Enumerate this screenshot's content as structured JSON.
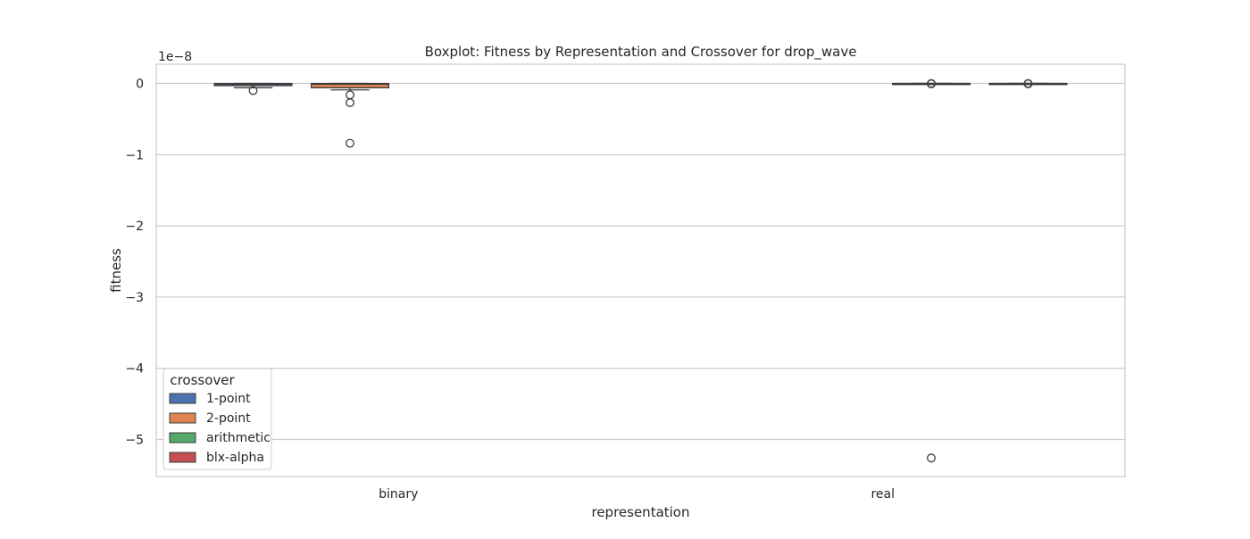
{
  "chart_data": {
    "type": "box",
    "title": "Boxplot: Fitness by Representation and Crossover for drop_wave",
    "xlabel": "representation",
    "ylabel": "fitness",
    "scale_note": "1e−8",
    "ylim": [
      -5.52,
      0.27
    ],
    "yticks": [
      0,
      -1,
      -2,
      -3,
      -4,
      -5
    ],
    "ytick_labels": [
      "0",
      "−1",
      "−2",
      "−3",
      "−4",
      "−5"
    ],
    "categories": [
      "binary",
      "real"
    ],
    "grid": "horizontal",
    "legend_position": "lower-left",
    "legend_title": "crossover",
    "series": [
      {
        "name": "1-point",
        "color": "#4c72b0"
      },
      {
        "name": "2-point",
        "color": "#dd8452"
      },
      {
        "name": "arithmetic",
        "color": "#55a868"
      },
      {
        "name": "blx-alpha",
        "color": "#c44e52"
      }
    ],
    "boxes": [
      {
        "category": "binary",
        "series": "1-point",
        "whisker_low": -0.06,
        "q1": -0.03,
        "median": -0.01,
        "q3": 0.0,
        "whisker_high": 0.0,
        "outliers": [
          -0.1
        ]
      },
      {
        "category": "binary",
        "series": "2-point",
        "whisker_low": -0.09,
        "q1": -0.06,
        "median": -0.01,
        "q3": 0.0,
        "whisker_high": 0.0,
        "outliers": [
          -0.16,
          -0.27,
          -0.84
        ]
      },
      {
        "category": "real",
        "series": "arithmetic",
        "whisker_low": 0.0,
        "q1": 0.0,
        "median": 0.0,
        "q3": 0.0,
        "whisker_high": 0.0,
        "outliers": [
          0.0,
          -0.005,
          -5.26
        ]
      },
      {
        "category": "real",
        "series": "blx-alpha",
        "whisker_low": 0.0,
        "q1": 0.0,
        "median": 0.0,
        "q3": 0.0,
        "whisker_high": 0.0,
        "outliers": [
          0.0,
          -0.005
        ]
      }
    ]
  }
}
